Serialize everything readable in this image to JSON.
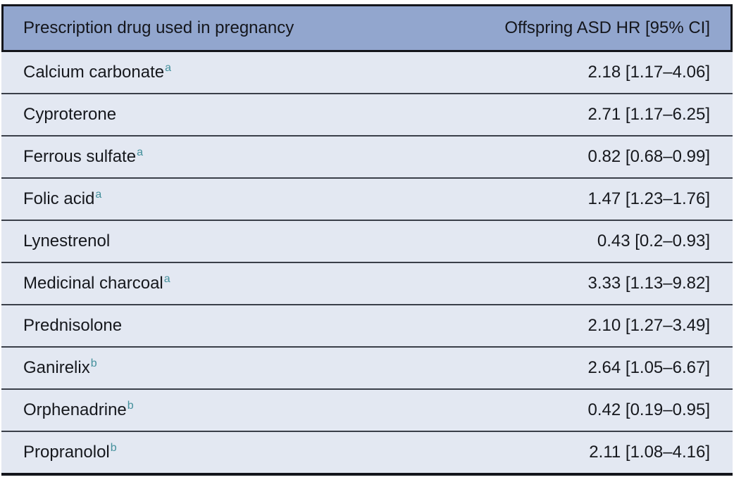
{
  "table": {
    "header": {
      "drug_column": "Prescription drug used in pregnancy",
      "value_column": "Offspring ASD HR [95% CI]"
    },
    "rows": [
      {
        "drug": "Calcium carbonate",
        "marker": "a",
        "hr_ci": "2.18 [1.17–4.06]"
      },
      {
        "drug": "Cyproterone",
        "marker": "",
        "hr_ci": "2.71 [1.17–6.25]"
      },
      {
        "drug": "Ferrous sulfate",
        "marker": "a",
        "hr_ci": "0.82 [0.68–0.99]"
      },
      {
        "drug": "Folic acid",
        "marker": "a",
        "hr_ci": "1.47 [1.23–1.76]"
      },
      {
        "drug": "Lynestrenol",
        "marker": "",
        "hr_ci": "0.43 [0.2–0.93]"
      },
      {
        "drug": "Medicinal charcoal",
        "marker": "a",
        "hr_ci": "3.33 [1.13–9.82]"
      },
      {
        "drug": "Prednisolone",
        "marker": "",
        "hr_ci": "2.10 [1.27–3.49]"
      },
      {
        "drug": "Ganirelix",
        "marker": "b",
        "hr_ci": "2.64 [1.05–6.67]"
      },
      {
        "drug": "Orphenadrine",
        "marker": "b",
        "hr_ci": "0.42 [0.19–0.95]"
      },
      {
        "drug": "Propranolol",
        "marker": "b",
        "hr_ci": "2.11 [1.08–4.16]"
      }
    ],
    "colors": {
      "header_bg": "#92a6ce",
      "row_bg": "#e3e8f2",
      "border_dark": "#14161c",
      "row_separator": "#3a3f49",
      "footnote_marker": "#44909c",
      "text": "#16181d"
    }
  }
}
